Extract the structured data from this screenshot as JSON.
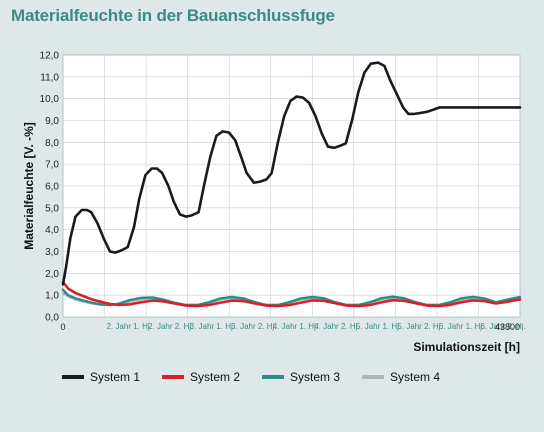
{
  "header": {
    "title": "Materialfeuchte in der Bauanschlussfuge"
  },
  "legend": [
    {
      "label": "System 1",
      "color": "#1a1a1a"
    },
    {
      "label": "System 2",
      "color": "#d8202a"
    },
    {
      "label": "System 3",
      "color": "#2d8c86"
    },
    {
      "label": "System 4",
      "color": "#b3b3b3"
    }
  ],
  "chart_data": {
    "type": "line",
    "title": "Materialfeuchte in der Bauanschlussfuge",
    "xlabel": "Simulationszeit [h]",
    "ylabel": "Materialfeuchte [V. -%]",
    "xlim": [
      0,
      43800
    ],
    "ylim": [
      0,
      12
    ],
    "grid": true,
    "legend_position": "bottom",
    "y_ticks": [
      "0,0",
      "1,0",
      "2,0",
      "3,0",
      "4,0",
      "5,0",
      "6,0",
      "7,0",
      "8,0",
      "9,0",
      "10,0",
      "11,0",
      "12,0"
    ],
    "x_ticks_start": "0",
    "x_ticks_end": "43800",
    "x_tick_labels": [
      "2. Jahr 1. Hj.",
      "2. Jahr 2. Hj.",
      "3. Jahr 1. Hj.",
      "3. Jahr 2. Hj.",
      "4. Jahr 1. Hj.",
      "4. Jahr 2. Hj.",
      "5. Jahr 1. Hj.",
      "5. Jahr 2. Hj.",
      "6. Jahr 1. Hj.",
      "6. Jahr 2. Hj."
    ],
    "series": [
      {
        "name": "System 1",
        "color": "#1a1a1a",
        "x": [
          0,
          300,
          700,
          1200,
          1800,
          2300,
          2700,
          3300,
          3900,
          4500,
          5000,
          5600,
          6200,
          6800,
          7300,
          7900,
          8500,
          9000,
          9500,
          10100,
          10600,
          11200,
          11800,
          12300,
          13000,
          13500,
          14100,
          14700,
          15300,
          15900,
          16500,
          17100,
          17600,
          18300,
          18900,
          19500,
          20000,
          20600,
          21200,
          21800,
          22400,
          23000,
          23600,
          24200,
          24800,
          25400,
          26000,
          26600,
          27100,
          27700,
          28300,
          28900,
          29500,
          30200,
          30800,
          31400,
          32000,
          32600,
          33100,
          33700,
          34300,
          34900,
          35500,
          36100,
          36700,
          37300,
          37900,
          38500,
          39100,
          39700,
          40300,
          40800,
          41400,
          42000,
          42600,
          43200,
          43800
        ],
        "values": [
          1.5,
          2.3,
          3.6,
          4.6,
          4.9,
          4.9,
          4.8,
          4.3,
          3.6,
          3.0,
          2.95,
          3.05,
          3.2,
          4.1,
          5.4,
          6.5,
          6.8,
          6.8,
          6.6,
          6.0,
          5.3,
          4.7,
          4.6,
          4.65,
          4.8,
          6.0,
          7.3,
          8.3,
          8.5,
          8.45,
          8.1,
          7.3,
          6.6,
          6.15,
          6.2,
          6.3,
          6.6,
          8.0,
          9.2,
          9.9,
          10.1,
          10.05,
          9.8,
          9.2,
          8.4,
          7.8,
          7.75,
          7.85,
          7.95,
          9.0,
          10.3,
          11.2,
          11.6,
          11.65,
          11.5,
          10.8,
          10.2,
          9.6,
          9.3,
          9.3,
          9.35,
          9.4,
          9.5,
          9.6,
          9.6,
          9.6,
          9.6,
          9.6,
          9.6,
          9.6,
          9.6,
          9.6,
          9.6,
          9.6,
          9.6,
          9.6,
          9.6
        ]
      },
      {
        "name": "System 2",
        "color": "#d8202a",
        "x": [
          0,
          500,
          1200,
          2000,
          2800,
          3600,
          4500,
          5400,
          6400,
          7500,
          8600,
          9600,
          10700,
          11800,
          12900,
          14000,
          15100,
          16200,
          17300,
          18400,
          19500,
          20600,
          21700,
          22800,
          23900,
          25000,
          26100,
          27200,
          28300,
          29400,
          30500,
          31600,
          32700,
          33800,
          34900,
          36000,
          37100,
          38200,
          39300,
          40400,
          41500,
          42600,
          43800
        ],
        "values": [
          1.6,
          1.3,
          1.1,
          0.95,
          0.8,
          0.7,
          0.6,
          0.55,
          0.58,
          0.68,
          0.75,
          0.72,
          0.62,
          0.52,
          0.5,
          0.55,
          0.66,
          0.75,
          0.73,
          0.62,
          0.52,
          0.5,
          0.55,
          0.66,
          0.76,
          0.74,
          0.63,
          0.52,
          0.5,
          0.55,
          0.67,
          0.77,
          0.74,
          0.63,
          0.52,
          0.5,
          0.56,
          0.68,
          0.76,
          0.73,
          0.62,
          0.7,
          0.8
        ]
      },
      {
        "name": "System 3",
        "color": "#2d8c86",
        "x": [
          0,
          500,
          1200,
          2000,
          2800,
          3600,
          4500,
          5400,
          6400,
          7500,
          8600,
          9600,
          10700,
          11800,
          12900,
          14000,
          15100,
          16200,
          17300,
          18400,
          19500,
          20600,
          21700,
          22800,
          23900,
          25000,
          26100,
          27200,
          28300,
          29400,
          30500,
          31600,
          32700,
          33800,
          34900,
          36000,
          37100,
          38200,
          39300,
          40400,
          41500,
          42600,
          43800
        ],
        "values": [
          1.25,
          1.0,
          0.85,
          0.75,
          0.65,
          0.58,
          0.55,
          0.62,
          0.78,
          0.88,
          0.9,
          0.8,
          0.65,
          0.55,
          0.55,
          0.68,
          0.85,
          0.92,
          0.85,
          0.68,
          0.55,
          0.55,
          0.68,
          0.85,
          0.92,
          0.86,
          0.68,
          0.55,
          0.55,
          0.68,
          0.86,
          0.93,
          0.86,
          0.68,
          0.55,
          0.55,
          0.68,
          0.86,
          0.92,
          0.85,
          0.68,
          0.8,
          0.92
        ]
      },
      {
        "name": "System 4",
        "color": "#b3b3b3",
        "x": [
          0,
          500,
          1200,
          2000,
          2800,
          3600,
          4500,
          5400,
          6400,
          7500,
          8600,
          9600,
          10700,
          11800,
          12900,
          14000,
          15100,
          16200,
          17300,
          18400,
          19500,
          20600,
          21700,
          22800,
          23900,
          25000,
          26100,
          27200,
          28300,
          29400,
          30500,
          31600,
          32700,
          33800,
          34900,
          36000,
          37100,
          38200,
          39300,
          40400,
          41500,
          42600,
          43800
        ],
        "values": [
          1.1,
          0.95,
          0.8,
          0.7,
          0.62,
          0.56,
          0.55,
          0.6,
          0.72,
          0.82,
          0.84,
          0.76,
          0.63,
          0.55,
          0.55,
          0.65,
          0.8,
          0.86,
          0.8,
          0.65,
          0.55,
          0.55,
          0.66,
          0.8,
          0.87,
          0.8,
          0.65,
          0.55,
          0.55,
          0.66,
          0.8,
          0.87,
          0.8,
          0.66,
          0.55,
          0.55,
          0.66,
          0.8,
          0.86,
          0.8,
          0.66,
          0.76,
          0.86
        ]
      }
    ]
  }
}
